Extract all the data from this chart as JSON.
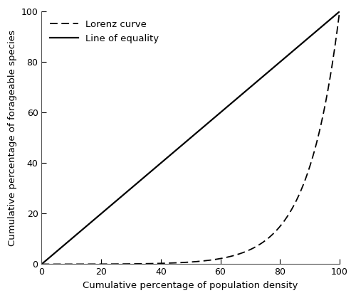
{
  "xlabel": "Cumulative percentage of population density",
  "ylabel": "Cumulative percentage of forageable species",
  "xlim": [
    0,
    100
  ],
  "ylim": [
    0,
    100
  ],
  "xticks": [
    0,
    20,
    40,
    60,
    80,
    100
  ],
  "yticks": [
    0,
    20,
    40,
    60,
    80,
    100
  ],
  "equality_label": "Line of equality",
  "equality_color": "#000000",
  "equality_linewidth": 1.6,
  "lorenz_label": "Lorenz curve",
  "lorenz_color": "#000000",
  "lorenz_linewidth": 1.3,
  "lorenz_dashes": [
    6,
    3
  ],
  "lorenz_k": 9.5,
  "background_color": "#ffffff",
  "legend_fontsize": 9.5,
  "axis_fontsize": 9.5,
  "tick_fontsize": 9,
  "figsize": [
    5.0,
    4.19
  ],
  "dpi": 100
}
